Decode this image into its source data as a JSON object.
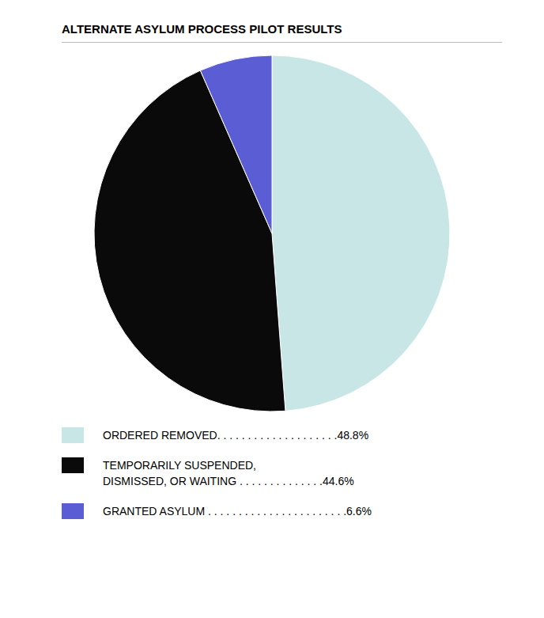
{
  "chart_data": {
    "type": "pie",
    "title": "ALTERNATE ASYLUM PROCESS PILOT RESULTS",
    "categories": [
      "ORDERED REMOVED. . . . . . . . . . . . . . . . . . . .48.8%",
      "TEMPORARILY SUSPENDED,\nDISMISSED, OR WAITING . . . . . . . . . . . . . .44.6%",
      "GRANTED ASYLUM . . . . . . . . . . . . . . . . . . . . . . .6.6%"
    ],
    "values": [
      48.8,
      44.6,
      6.6
    ],
    "colors": [
      "#c8e6e6",
      "#0a0a0a",
      "#5b5dd4"
    ]
  }
}
